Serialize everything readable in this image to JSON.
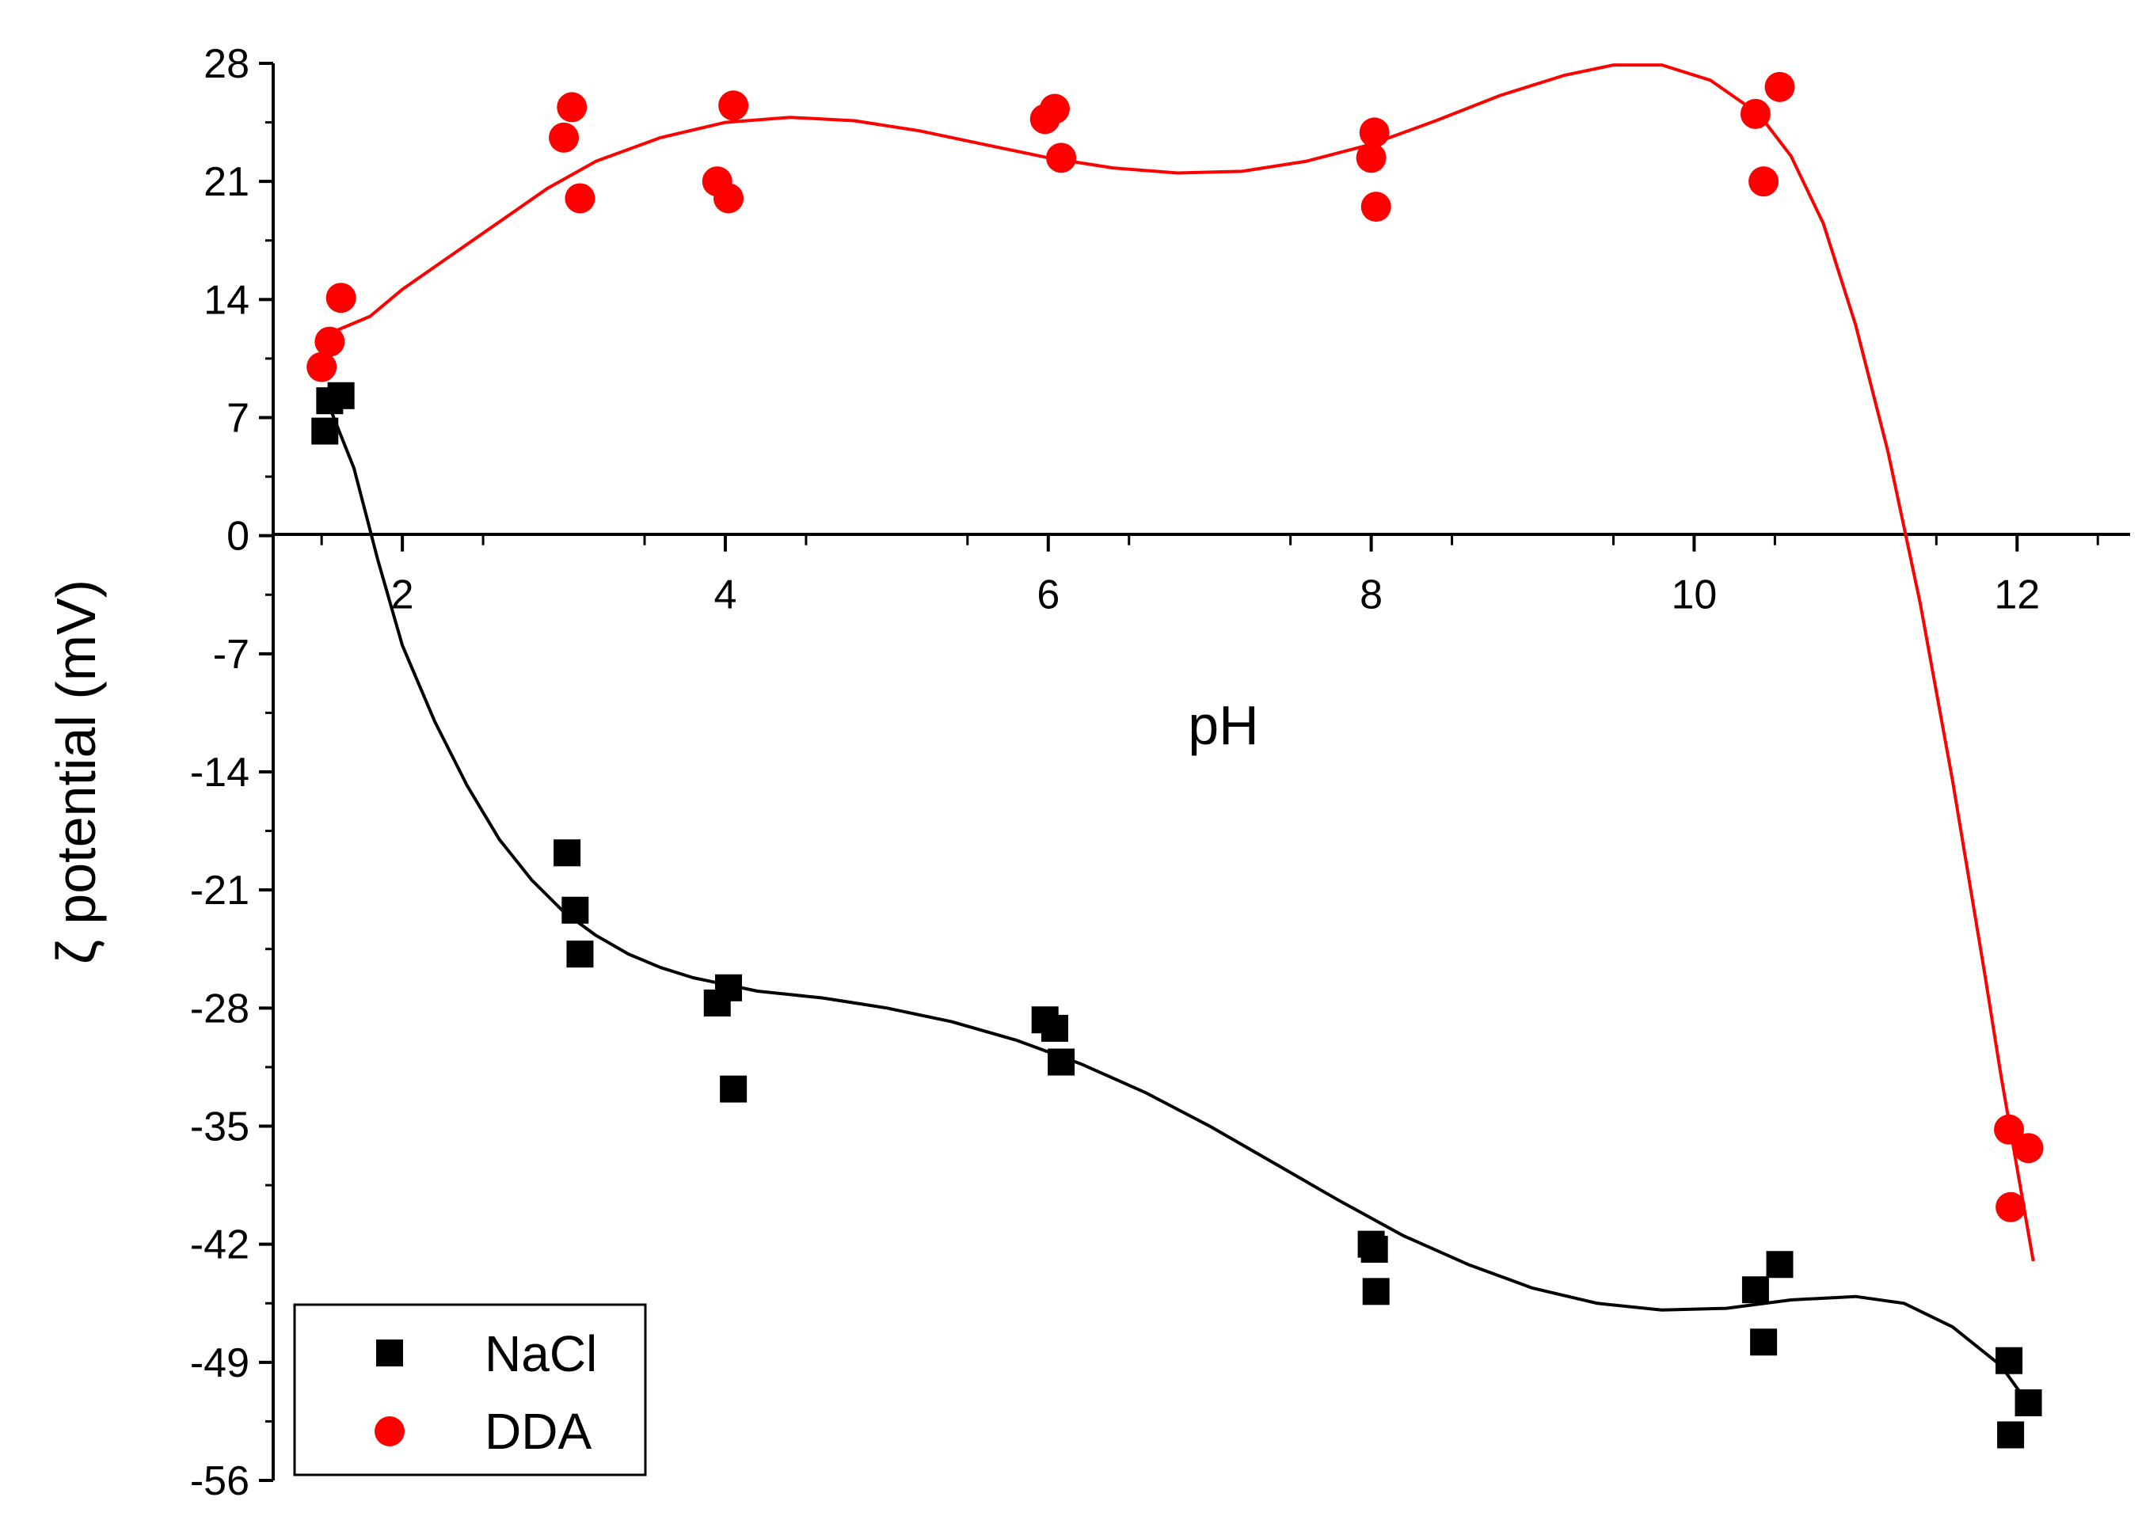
{
  "chart_data": {
    "type": "scatter",
    "title": "",
    "xlabel": "pH",
    "ylabel": "ζ potential (mV)",
    "xlim": [
      1.2,
      12.7
    ],
    "ylim": [
      -56,
      28
    ],
    "x_ticks": [
      2,
      4,
      6,
      8,
      10,
      12
    ],
    "x_tick_labels": [
      "2",
      "4",
      "6",
      "8",
      "10",
      "12"
    ],
    "y_ticks": [
      28,
      21,
      14,
      7,
      0,
      -7,
      -14,
      -21,
      -28,
      -35,
      -42,
      -49,
      -56
    ],
    "y_tick_labels": [
      "28",
      "21",
      "14",
      "7",
      "0",
      "-7",
      "-14",
      "-21",
      "-28",
      "-35",
      "-42",
      "-49",
      "-56"
    ],
    "legend_position": "bottom-left",
    "series": [
      {
        "name": "NaCl",
        "label": "NaCl",
        "marker": "square",
        "color": "#000000",
        "points": [
          [
            1.52,
            6.2
          ],
          [
            1.55,
            8.0
          ],
          [
            1.62,
            8.3
          ],
          [
            3.02,
            -18.8
          ],
          [
            3.07,
            -22.2
          ],
          [
            3.1,
            -24.8
          ],
          [
            3.95,
            -27.7
          ],
          [
            4.02,
            -26.8
          ],
          [
            4.05,
            -32.8
          ],
          [
            5.98,
            -28.7
          ],
          [
            6.04,
            -29.2
          ],
          [
            6.08,
            -31.2
          ],
          [
            8.0,
            -42.0
          ],
          [
            8.02,
            -42.3
          ],
          [
            8.03,
            -44.8
          ],
          [
            10.38,
            -44.7
          ],
          [
            10.43,
            -47.8
          ],
          [
            10.53,
            -43.2
          ],
          [
            11.95,
            -48.9
          ],
          [
            11.96,
            -53.3
          ],
          [
            12.07,
            -51.4
          ]
        ],
        "fit_curve": [
          [
            1.55,
            7.6
          ],
          [
            1.7,
            4.0
          ],
          [
            1.85,
            -1.5
          ],
          [
            2.0,
            -6.5
          ],
          [
            2.2,
            -11.0
          ],
          [
            2.4,
            -14.8
          ],
          [
            2.6,
            -18.0
          ],
          [
            2.8,
            -20.4
          ],
          [
            3.0,
            -22.3
          ],
          [
            3.2,
            -23.7
          ],
          [
            3.4,
            -24.8
          ],
          [
            3.6,
            -25.6
          ],
          [
            3.8,
            -26.2
          ],
          [
            4.0,
            -26.6
          ],
          [
            4.2,
            -27.0
          ],
          [
            4.4,
            -27.2
          ],
          [
            4.6,
            -27.4
          ],
          [
            4.8,
            -27.7
          ],
          [
            5.0,
            -28.0
          ],
          [
            5.4,
            -28.8
          ],
          [
            5.8,
            -29.9
          ],
          [
            6.2,
            -31.3
          ],
          [
            6.6,
            -33.0
          ],
          [
            7.0,
            -35.0
          ],
          [
            7.4,
            -37.2
          ],
          [
            7.8,
            -39.4
          ],
          [
            8.2,
            -41.5
          ],
          [
            8.6,
            -43.2
          ],
          [
            9.0,
            -44.6
          ],
          [
            9.4,
            -45.5
          ],
          [
            9.8,
            -45.9
          ],
          [
            10.2,
            -45.8
          ],
          [
            10.6,
            -45.3
          ],
          [
            11.0,
            -45.1
          ],
          [
            11.3,
            -45.5
          ],
          [
            11.6,
            -46.9
          ],
          [
            11.9,
            -49.2
          ],
          [
            12.05,
            -51.2
          ]
        ]
      },
      {
        "name": "DDA",
        "label": "DDA",
        "marker": "circle",
        "color": "#ff0000",
        "points": [
          [
            1.5,
            10.0
          ],
          [
            1.55,
            11.5
          ],
          [
            1.62,
            14.1
          ],
          [
            3.0,
            23.6
          ],
          [
            3.05,
            25.4
          ],
          [
            3.1,
            20.0
          ],
          [
            3.95,
            21.0
          ],
          [
            4.02,
            20.0
          ],
          [
            4.05,
            25.5
          ],
          [
            5.98,
            24.7
          ],
          [
            6.04,
            25.3
          ],
          [
            6.08,
            22.4
          ],
          [
            8.0,
            22.4
          ],
          [
            8.02,
            23.9
          ],
          [
            8.03,
            19.5
          ],
          [
            10.38,
            25.0
          ],
          [
            10.43,
            21.0
          ],
          [
            10.53,
            26.6
          ],
          [
            11.95,
            -35.2
          ],
          [
            11.96,
            -39.8
          ],
          [
            12.07,
            -36.3
          ]
        ],
        "fit_curve": [
          [
            1.55,
            12.0
          ],
          [
            1.8,
            13.0
          ],
          [
            2.0,
            14.6
          ],
          [
            2.3,
            16.6
          ],
          [
            2.6,
            18.6
          ],
          [
            2.9,
            20.6
          ],
          [
            3.2,
            22.2
          ],
          [
            3.6,
            23.6
          ],
          [
            4.0,
            24.5
          ],
          [
            4.4,
            24.8
          ],
          [
            4.8,
            24.6
          ],
          [
            5.2,
            24.0
          ],
          [
            5.6,
            23.2
          ],
          [
            6.0,
            22.4
          ],
          [
            6.4,
            21.8
          ],
          [
            6.8,
            21.5
          ],
          [
            7.2,
            21.6
          ],
          [
            7.6,
            22.2
          ],
          [
            8.0,
            23.2
          ],
          [
            8.4,
            24.6
          ],
          [
            8.8,
            26.1
          ],
          [
            9.2,
            27.3
          ],
          [
            9.5,
            27.9
          ],
          [
            9.8,
            27.9
          ],
          [
            10.1,
            27.0
          ],
          [
            10.4,
            25.0
          ],
          [
            10.6,
            22.5
          ],
          [
            10.8,
            18.5
          ],
          [
            11.0,
            12.5
          ],
          [
            11.2,
            5.0
          ],
          [
            11.4,
            -4.0
          ],
          [
            11.6,
            -14.5
          ],
          [
            11.8,
            -26.0
          ],
          [
            11.9,
            -32.0
          ],
          [
            12.0,
            -37.5
          ],
          [
            12.1,
            -43.0
          ]
        ]
      }
    ]
  }
}
